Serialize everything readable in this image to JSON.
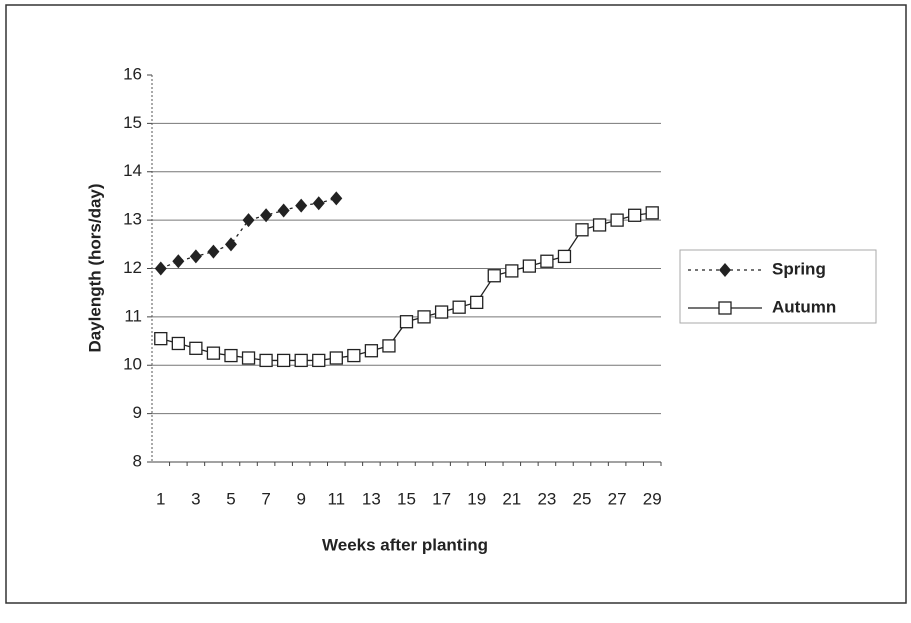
{
  "chart_data": {
    "type": "line",
    "x_label": "Weeks after planting",
    "y_label": "Daylength (hors/day)",
    "categories": [
      1,
      null,
      3,
      null,
      5,
      null,
      7,
      null,
      9,
      null,
      11,
      null,
      13,
      null,
      15,
      null,
      17,
      null,
      19,
      null,
      21,
      null,
      23,
      null,
      25,
      null,
      27,
      null,
      29
    ],
    "series": [
      {
        "name": "Spring",
        "color": "#222222",
        "marker": "diamond",
        "line": "dotted",
        "values": [
          12.0,
          12.15,
          12.25,
          12.35,
          12.5,
          13.0,
          13.1,
          13.2,
          13.3,
          13.35,
          13.45,
          null,
          null,
          null,
          null,
          null,
          null,
          null,
          null,
          null,
          null,
          null,
          null,
          null,
          null,
          null,
          null,
          null,
          null
        ]
      },
      {
        "name": "Autumn",
        "color": "#222222",
        "marker": "square",
        "line": "solid",
        "values": [
          10.55,
          10.45,
          10.35,
          10.25,
          10.2,
          10.15,
          10.1,
          10.1,
          10.1,
          10.1,
          10.15,
          10.2,
          10.3,
          10.4,
          10.9,
          11.0,
          11.1,
          11.2,
          11.3,
          11.85,
          11.95,
          12.05,
          12.15,
          12.25,
          12.8,
          12.9,
          13.0,
          13.1,
          13.15
        ]
      }
    ],
    "ylim": [
      8,
      16
    ],
    "yticks": [
      8,
      9,
      10,
      11,
      12,
      13,
      14,
      15,
      16
    ],
    "grid": true,
    "legend": "right"
  }
}
